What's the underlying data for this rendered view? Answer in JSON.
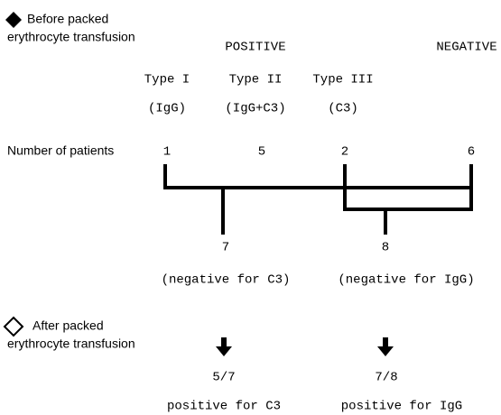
{
  "before": {
    "title_line1": "Before packed",
    "title_line2": "erythrocyte transfusion"
  },
  "groups": {
    "positive": "POSITIVE",
    "negative": "NEGATIVE"
  },
  "types": [
    {
      "name": "Type I",
      "antibody": "(IgG)",
      "patients": "1"
    },
    {
      "name": "Type II",
      "antibody": "(IgG+C3)",
      "patients": "5"
    },
    {
      "name": "Type III",
      "antibody": "(C3)",
      "patients": "2"
    }
  ],
  "negative_patients": "6",
  "row_label": "Number of patients",
  "combined": [
    {
      "count": "7",
      "label": "(negative for C3)",
      "result": "5/7",
      "result_label": "positive for C3"
    },
    {
      "count": "8",
      "label": "(negative for IgG)",
      "result": "7/8",
      "result_label": "positive for IgG"
    }
  ],
  "after": {
    "title_line1": "After packed",
    "title_line2": "erythrocyte transfusion"
  }
}
